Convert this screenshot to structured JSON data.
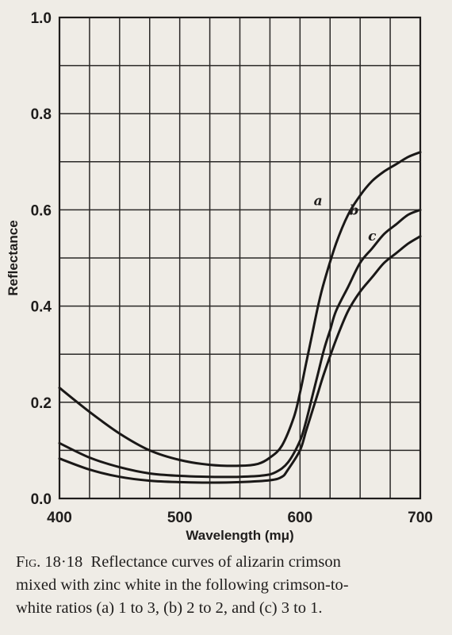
{
  "chart_data": {
    "type": "line",
    "title": "",
    "xlabel": "Wavelength (mμ)",
    "ylabel": "Reflectance",
    "xlim": [
      400,
      700
    ],
    "ylim": [
      0.0,
      1.0
    ],
    "x_ticks": [
      "400",
      "500",
      "600",
      "700"
    ],
    "y_ticks": [
      "0.0",
      "0.2",
      "0.4",
      "0.6",
      "0.8",
      "1.0"
    ],
    "grid": true,
    "series": [
      {
        "name": "a",
        "x": [
          400,
          425,
          450,
          475,
          500,
          525,
          550,
          565,
          575,
          585,
          595,
          600,
          605,
          610,
          615,
          620,
          630,
          640,
          650,
          660,
          670,
          680,
          690,
          700
        ],
        "y": [
          0.23,
          0.18,
          0.135,
          0.1,
          0.08,
          0.07,
          0.068,
          0.072,
          0.085,
          0.11,
          0.17,
          0.22,
          0.28,
          0.34,
          0.4,
          0.45,
          0.53,
          0.59,
          0.63,
          0.66,
          0.68,
          0.695,
          0.71,
          0.72
        ]
      },
      {
        "name": "b",
        "x": [
          400,
          425,
          450,
          475,
          500,
          525,
          550,
          570,
          580,
          590,
          600,
          605,
          610,
          615,
          620,
          625,
          630,
          640,
          650,
          660,
          670,
          680,
          690,
          700
        ],
        "y": [
          0.115,
          0.085,
          0.065,
          0.052,
          0.047,
          0.045,
          0.045,
          0.048,
          0.055,
          0.075,
          0.12,
          0.16,
          0.21,
          0.26,
          0.31,
          0.35,
          0.39,
          0.44,
          0.49,
          0.52,
          0.55,
          0.57,
          0.59,
          0.6
        ]
      },
      {
        "name": "c",
        "x": [
          400,
          425,
          450,
          475,
          500,
          525,
          550,
          575,
          585,
          590,
          600,
          605,
          610,
          615,
          620,
          630,
          640,
          650,
          660,
          670,
          680,
          690,
          700
        ],
        "y": [
          0.083,
          0.06,
          0.045,
          0.037,
          0.034,
          0.033,
          0.034,
          0.038,
          0.045,
          0.06,
          0.1,
          0.14,
          0.18,
          0.22,
          0.26,
          0.33,
          0.39,
          0.43,
          0.46,
          0.49,
          0.51,
          0.53,
          0.545
        ]
      }
    ]
  },
  "caption": {
    "fig_label": "Fig. 18·18",
    "line1": "Reflectance curves of alizarin crimson",
    "line2": "mixed with zinc white in the following crimson-to-",
    "line3": "white ratios (a) 1 to 3, (b) 2 to 2, and (c) 3 to 1."
  }
}
